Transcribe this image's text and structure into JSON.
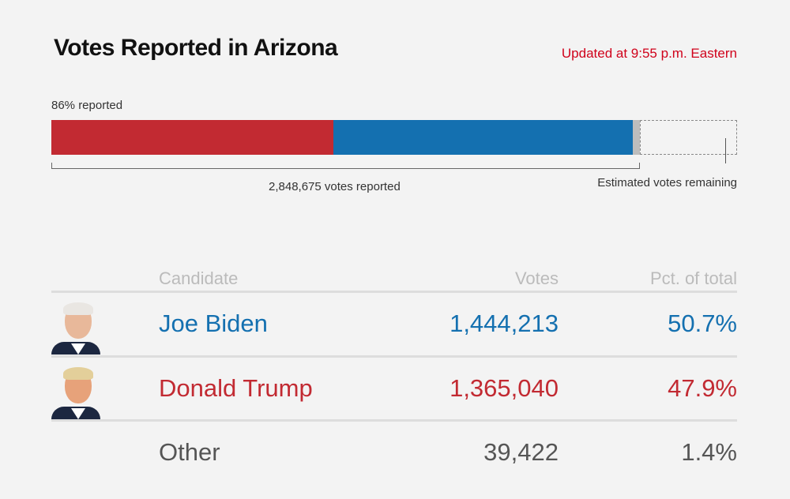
{
  "header": {
    "title": "Votes Reported in Arizona",
    "updated": "Updated at 9:55 p.m. Eastern"
  },
  "progress": {
    "pct_label": "86% reported",
    "pct_reported": 86,
    "votes_reported_label": "2,848,675 votes reported",
    "remaining_label": "Estimated votes remaining",
    "colors": {
      "trump": "#c22a32",
      "biden": "#1470b0",
      "other": "#bdbdbd"
    }
  },
  "table": {
    "headers": {
      "candidate": "Candidate",
      "votes": "Votes",
      "pct": "Pct. of total"
    },
    "rows": [
      {
        "name": "Joe Biden",
        "votes": "1,444,213",
        "pct": "50.7%",
        "color": "#1470b0",
        "portrait": "biden-photo"
      },
      {
        "name": "Donald Trump",
        "votes": "1,365,040",
        "pct": "47.9%",
        "color": "#c22a32",
        "portrait": "trump-photo"
      },
      {
        "name": "Other",
        "votes": "39,422",
        "pct": "1.4%",
        "color": "#555555"
      }
    ]
  }
}
